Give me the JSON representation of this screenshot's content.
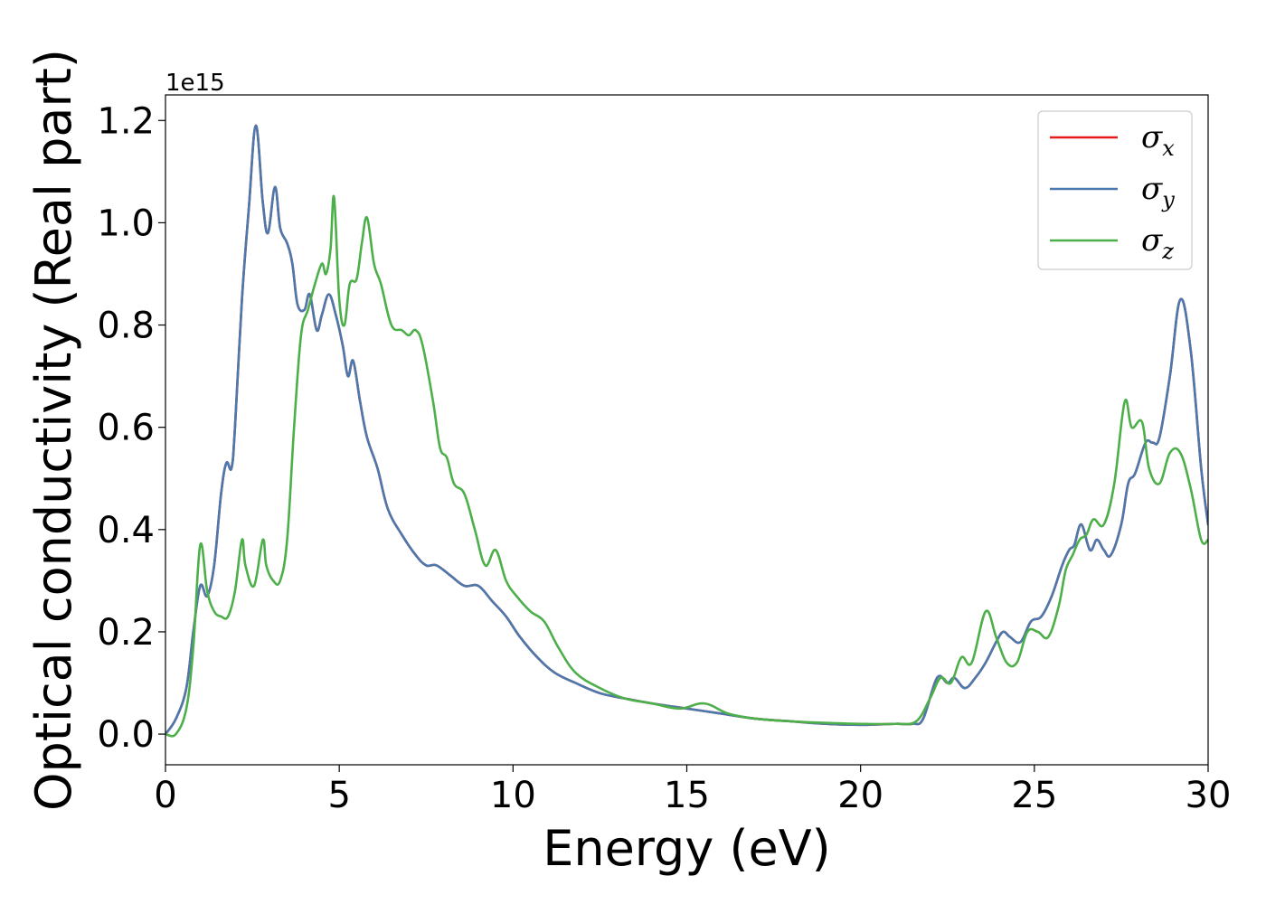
{
  "chart_data": {
    "type": "line",
    "xlabel": "Energy (eV)",
    "ylabel": "Optical conductivity (Real part)",
    "y_offset_label": "1e15",
    "xlim": [
      0,
      30
    ],
    "ylim": [
      -0.06,
      1.25
    ],
    "x_ticks": [
      0,
      5,
      10,
      15,
      20,
      25,
      30
    ],
    "x_tick_labels": [
      "0",
      "5",
      "10",
      "15",
      "20",
      "25",
      "30"
    ],
    "y_ticks": [
      0.0,
      0.2,
      0.4,
      0.6,
      0.8,
      1.0,
      1.2
    ],
    "y_tick_labels": [
      "0.0",
      "0.2",
      "0.4",
      "0.6",
      "0.8",
      "1.0",
      "1.2"
    ],
    "grid": false,
    "legend_position": "top-right",
    "series": [
      {
        "name": "σx",
        "legend_symbol": "σ",
        "legend_sub": "x",
        "color": "#e41a1c",
        "x": [
          0,
          0.3,
          0.6,
          0.8,
          1.0,
          1.2,
          1.4,
          1.6,
          1.75,
          1.9,
          2.0,
          2.2,
          2.4,
          2.6,
          2.8,
          2.95,
          3.15,
          3.3,
          3.5,
          3.65,
          3.8,
          4.0,
          4.15,
          4.35,
          4.5,
          4.7,
          4.9,
          5.1,
          5.25,
          5.4,
          5.6,
          5.8,
          6.1,
          6.4,
          6.8,
          7.2,
          7.5,
          7.8,
          8.2,
          8.6,
          9.0,
          9.4,
          9.8,
          10.2,
          10.7,
          11.2,
          11.8,
          12.5,
          13.2,
          14.0,
          15.0,
          16.0,
          17.0,
          18.0,
          19.0,
          20.0,
          21.0,
          21.5,
          21.8,
          22.2,
          22.5,
          22.7,
          23.0,
          23.3,
          23.6,
          23.9,
          24.1,
          24.3,
          24.6,
          24.9,
          25.2,
          25.5,
          25.8,
          26.0,
          26.15,
          26.35,
          26.6,
          26.8,
          27.0,
          27.2,
          27.5,
          27.7,
          27.9,
          28.2,
          28.4,
          28.6,
          28.9,
          29.2,
          29.5,
          29.8,
          30.0
        ],
        "y": [
          0.0,
          0.03,
          0.09,
          0.2,
          0.29,
          0.27,
          0.33,
          0.47,
          0.53,
          0.52,
          0.6,
          0.85,
          1.03,
          1.19,
          1.04,
          0.98,
          1.07,
          0.99,
          0.96,
          0.92,
          0.84,
          0.83,
          0.86,
          0.79,
          0.82,
          0.86,
          0.82,
          0.76,
          0.7,
          0.73,
          0.65,
          0.58,
          0.52,
          0.44,
          0.39,
          0.35,
          0.33,
          0.33,
          0.31,
          0.29,
          0.29,
          0.26,
          0.23,
          0.19,
          0.15,
          0.12,
          0.1,
          0.08,
          0.07,
          0.06,
          0.05,
          0.04,
          0.03,
          0.025,
          0.02,
          0.018,
          0.02,
          0.02,
          0.03,
          0.11,
          0.1,
          0.11,
          0.09,
          0.11,
          0.14,
          0.18,
          0.2,
          0.19,
          0.18,
          0.22,
          0.23,
          0.27,
          0.33,
          0.36,
          0.37,
          0.41,
          0.36,
          0.38,
          0.36,
          0.35,
          0.41,
          0.49,
          0.51,
          0.57,
          0.57,
          0.58,
          0.7,
          0.85,
          0.75,
          0.52,
          0.41
        ]
      },
      {
        "name": "σy",
        "legend_symbol": "σ",
        "legend_sub": "y",
        "color": "#4b79ad",
        "x": [
          0,
          0.3,
          0.6,
          0.8,
          1.0,
          1.2,
          1.4,
          1.6,
          1.75,
          1.9,
          2.0,
          2.2,
          2.4,
          2.6,
          2.8,
          2.95,
          3.15,
          3.3,
          3.5,
          3.65,
          3.8,
          4.0,
          4.15,
          4.35,
          4.5,
          4.7,
          4.9,
          5.1,
          5.25,
          5.4,
          5.6,
          5.8,
          6.1,
          6.4,
          6.8,
          7.2,
          7.5,
          7.8,
          8.2,
          8.6,
          9.0,
          9.4,
          9.8,
          10.2,
          10.7,
          11.2,
          11.8,
          12.5,
          13.2,
          14.0,
          15.0,
          16.0,
          17.0,
          18.0,
          19.0,
          20.0,
          21.0,
          21.5,
          21.8,
          22.2,
          22.5,
          22.7,
          23.0,
          23.3,
          23.6,
          23.9,
          24.1,
          24.3,
          24.6,
          24.9,
          25.2,
          25.5,
          25.8,
          26.0,
          26.15,
          26.35,
          26.6,
          26.8,
          27.0,
          27.2,
          27.5,
          27.7,
          27.9,
          28.2,
          28.4,
          28.6,
          28.9,
          29.2,
          29.5,
          29.8,
          30.0
        ],
        "y": [
          0.0,
          0.03,
          0.09,
          0.2,
          0.29,
          0.27,
          0.33,
          0.47,
          0.53,
          0.52,
          0.6,
          0.85,
          1.03,
          1.19,
          1.04,
          0.98,
          1.07,
          0.99,
          0.96,
          0.92,
          0.84,
          0.83,
          0.86,
          0.79,
          0.82,
          0.86,
          0.82,
          0.76,
          0.7,
          0.73,
          0.65,
          0.58,
          0.52,
          0.44,
          0.39,
          0.35,
          0.33,
          0.33,
          0.31,
          0.29,
          0.29,
          0.26,
          0.23,
          0.19,
          0.15,
          0.12,
          0.1,
          0.08,
          0.07,
          0.06,
          0.05,
          0.04,
          0.03,
          0.025,
          0.02,
          0.018,
          0.02,
          0.02,
          0.03,
          0.11,
          0.1,
          0.11,
          0.09,
          0.11,
          0.14,
          0.18,
          0.2,
          0.19,
          0.18,
          0.22,
          0.23,
          0.27,
          0.33,
          0.36,
          0.37,
          0.41,
          0.36,
          0.38,
          0.36,
          0.35,
          0.41,
          0.49,
          0.51,
          0.57,
          0.57,
          0.58,
          0.7,
          0.85,
          0.75,
          0.52,
          0.41
        ]
      },
      {
        "name": "σz",
        "legend_symbol": "σ",
        "legend_sub": "z",
        "color": "#4daf4a",
        "x": [
          0,
          0.3,
          0.6,
          0.8,
          1.0,
          1.2,
          1.4,
          1.6,
          1.8,
          2.0,
          2.2,
          2.3,
          2.55,
          2.8,
          2.9,
          3.1,
          3.3,
          3.5,
          3.7,
          3.9,
          4.1,
          4.3,
          4.5,
          4.62,
          4.75,
          4.85,
          5.0,
          5.15,
          5.3,
          5.5,
          5.65,
          5.8,
          6.0,
          6.2,
          6.5,
          6.8,
          7.0,
          7.2,
          7.4,
          7.7,
          7.9,
          8.1,
          8.3,
          8.6,
          8.9,
          9.2,
          9.5,
          9.8,
          10.1,
          10.5,
          10.9,
          11.3,
          11.8,
          12.5,
          13.2,
          14.0,
          14.8,
          15.5,
          16.2,
          17.0,
          18.0,
          19.0,
          20.0,
          21.0,
          21.6,
          22.0,
          22.3,
          22.6,
          22.9,
          23.2,
          23.6,
          23.9,
          24.2,
          24.5,
          24.8,
          25.1,
          25.4,
          25.7,
          25.9,
          26.1,
          26.3,
          26.5,
          26.7,
          27.0,
          27.3,
          27.6,
          27.8,
          28.1,
          28.3,
          28.6,
          28.9,
          29.2,
          29.5,
          29.8,
          30.0
        ],
        "y": [
          0.0,
          0.0,
          0.05,
          0.17,
          0.37,
          0.28,
          0.24,
          0.23,
          0.23,
          0.28,
          0.38,
          0.33,
          0.29,
          0.38,
          0.33,
          0.3,
          0.3,
          0.38,
          0.6,
          0.78,
          0.83,
          0.88,
          0.92,
          0.9,
          0.95,
          1.05,
          0.85,
          0.8,
          0.88,
          0.89,
          0.96,
          1.01,
          0.92,
          0.88,
          0.8,
          0.79,
          0.78,
          0.79,
          0.76,
          0.65,
          0.56,
          0.54,
          0.49,
          0.47,
          0.4,
          0.33,
          0.36,
          0.3,
          0.27,
          0.24,
          0.22,
          0.17,
          0.12,
          0.09,
          0.07,
          0.06,
          0.05,
          0.06,
          0.04,
          0.03,
          0.025,
          0.022,
          0.02,
          0.02,
          0.025,
          0.07,
          0.11,
          0.1,
          0.15,
          0.14,
          0.24,
          0.19,
          0.14,
          0.14,
          0.2,
          0.2,
          0.19,
          0.25,
          0.32,
          0.35,
          0.38,
          0.39,
          0.42,
          0.41,
          0.49,
          0.65,
          0.6,
          0.61,
          0.52,
          0.49,
          0.55,
          0.55,
          0.48,
          0.38,
          0.38
        ]
      }
    ]
  }
}
